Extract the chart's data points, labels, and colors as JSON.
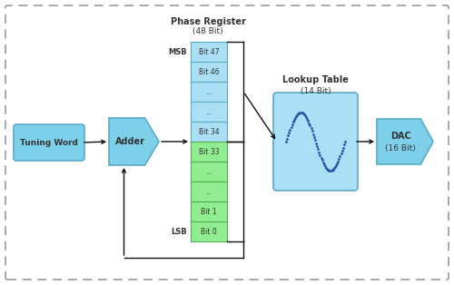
{
  "bg_color": "#ffffff",
  "phase_register_title": "Phase Register",
  "phase_register_subtitle": "(48 Bit)",
  "lookup_table_title": "Lookup Table",
  "lookup_table_subtitle": "(14 Bit)",
  "dac_title": "DAC",
  "dac_subtitle": "(16 Bit)",
  "tuning_word_label": "Tuning Word",
  "adder_label": "Adder",
  "msb_label": "MSB",
  "lsb_label": "LSB",
  "blue_fill": "#7dcfea",
  "blue_light": "#aadff5",
  "green_fill": "#90ee90",
  "border_blue": "#5aaac5",
  "border_green": "#55aa55",
  "border_dark": "#333333",
  "bits_blue": [
    "Bit 47",
    "Bit 46",
    "...",
    "...",
    "Bit 34"
  ],
  "bits_green": [
    "Bit 33",
    "...",
    "...",
    "Bit 1",
    "Bit 0"
  ],
  "arrow_color": "#111111",
  "text_color": "#333333",
  "dashed_border_color": "#999999",
  "fig_w": 5.0,
  "fig_h": 3.14,
  "dpi": 100
}
